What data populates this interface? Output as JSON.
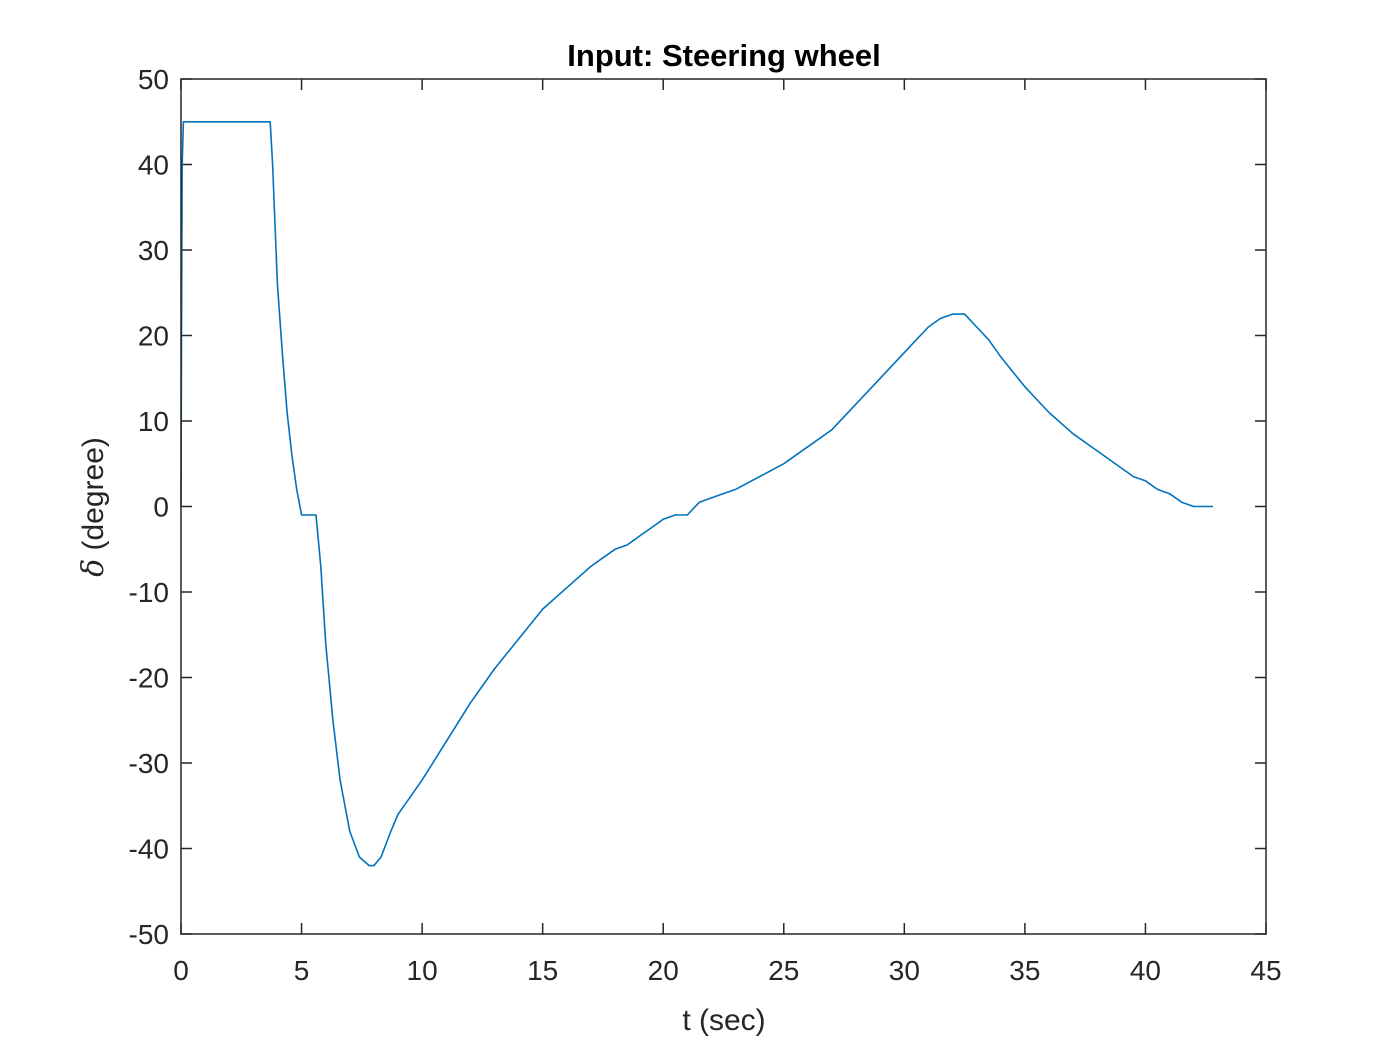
{
  "chart_data": {
    "type": "line",
    "title": "Input: Steering wheel",
    "xlabel": "t (sec)",
    "ylabel_symbol": "δ",
    "ylabel_text": " (degree)",
    "xlim": [
      0,
      45
    ],
    "ylim": [
      -50,
      50
    ],
    "xticks": [
      0,
      5,
      10,
      15,
      20,
      25,
      30,
      35,
      40,
      45
    ],
    "yticks": [
      -50,
      -40,
      -30,
      -20,
      -10,
      0,
      10,
      20,
      30,
      40,
      50
    ],
    "grid": false,
    "line_color": "#0072BD",
    "series": [
      {
        "x": [
          0,
          0.02,
          0.05,
          0.1,
          1,
          2,
          3,
          3.7,
          3.8,
          3.9,
          4.0,
          4.2,
          4.4,
          4.6,
          4.8,
          5.0,
          5.2,
          5.4,
          5.6,
          5.8,
          6.0,
          6.3,
          6.6,
          7.0,
          7.4,
          7.8,
          8.0,
          8.3,
          8.7,
          9.0,
          9.5,
          10,
          11,
          12,
          13,
          14,
          15,
          16,
          17,
          17.5,
          18,
          18.5,
          19,
          19.5,
          20,
          20.5,
          21,
          21.5,
          22,
          23,
          24,
          25,
          26,
          27,
          28,
          29,
          30,
          31,
          31.5,
          32,
          32.5,
          33,
          33.5,
          34,
          35,
          36,
          37,
          38,
          39,
          39.5,
          40,
          40.5,
          41,
          41.5,
          42,
          42.5,
          42.8
        ],
        "y": [
          0,
          20,
          40,
          45,
          45,
          45,
          45,
          45,
          40,
          33,
          26,
          18,
          11,
          6,
          2,
          -1,
          -1,
          -1,
          -1,
          -7,
          -16,
          -25,
          -32,
          -38,
          -41,
          -42,
          -42,
          -41,
          -38,
          -36,
          -34,
          -32,
          -27.5,
          -23,
          -19,
          -15.5,
          -12,
          -9.5,
          -7,
          -6,
          -5,
          -4.5,
          -3.5,
          -2.5,
          -1.5,
          -1,
          -1,
          0.5,
          1,
          2,
          3.5,
          5,
          7,
          9,
          12,
          15,
          18,
          21,
          22,
          22.5,
          22.5,
          21,
          19.5,
          17.5,
          14,
          11,
          8.5,
          6.5,
          4.5,
          3.5,
          3,
          2,
          1.5,
          0.5,
          0,
          0,
          0
        ]
      }
    ]
  }
}
